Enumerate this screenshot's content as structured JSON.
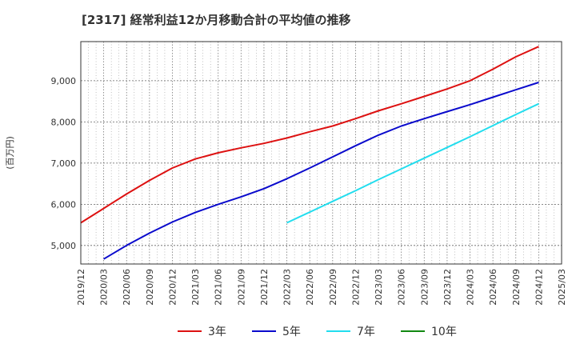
{
  "chart_data": {
    "type": "line",
    "title": "[2317]  経常利益12か月移動合計の平均値の推移",
    "ylabel": "(百万円)",
    "xlabel": "",
    "x": [
      "2019/12",
      "2020/03",
      "2020/06",
      "2020/09",
      "2020/12",
      "2021/03",
      "2021/06",
      "2021/09",
      "2021/12",
      "2022/03",
      "2022/06",
      "2022/09",
      "2022/12",
      "2023/03",
      "2023/06",
      "2023/09",
      "2023/12",
      "2024/03",
      "2024/06",
      "2024/09",
      "2024/12",
      "2025/03"
    ],
    "ylim": [
      4550,
      9950
    ],
    "yticks": [
      5000,
      6000,
      7000,
      8000,
      9000
    ],
    "ytick_labels": [
      "5,000",
      "6,000",
      "7,000",
      "8,000",
      "9,000"
    ],
    "grid": true,
    "legend_position": "bottom",
    "series": [
      {
        "name": "3年",
        "color": "#dd1111",
        "values": [
          5550,
          5900,
          6250,
          6580,
          6880,
          7100,
          7250,
          7370,
          7480,
          7610,
          7760,
          7900,
          8080,
          8270,
          8440,
          8620,
          8800,
          9000,
          9280,
          9580,
          9830,
          null
        ]
      },
      {
        "name": "5年",
        "color": "#0a0acc",
        "values": [
          null,
          4670,
          5000,
          5300,
          5570,
          5800,
          6000,
          6180,
          6380,
          6620,
          6880,
          7150,
          7420,
          7680,
          7900,
          8080,
          8250,
          8420,
          8600,
          8780,
          8960,
          null
        ]
      },
      {
        "name": "7年",
        "color": "#22ddee",
        "values": [
          null,
          null,
          null,
          null,
          null,
          null,
          null,
          null,
          null,
          5550,
          5810,
          6070,
          6330,
          6600,
          6860,
          7120,
          7380,
          7640,
          7910,
          8180,
          8440,
          null
        ]
      },
      {
        "name": "10年",
        "color": "#118811",
        "values": [
          null,
          null,
          null,
          null,
          null,
          null,
          null,
          null,
          null,
          null,
          null,
          null,
          null,
          null,
          null,
          null,
          null,
          null,
          null,
          null,
          null,
          null
        ]
      }
    ]
  }
}
